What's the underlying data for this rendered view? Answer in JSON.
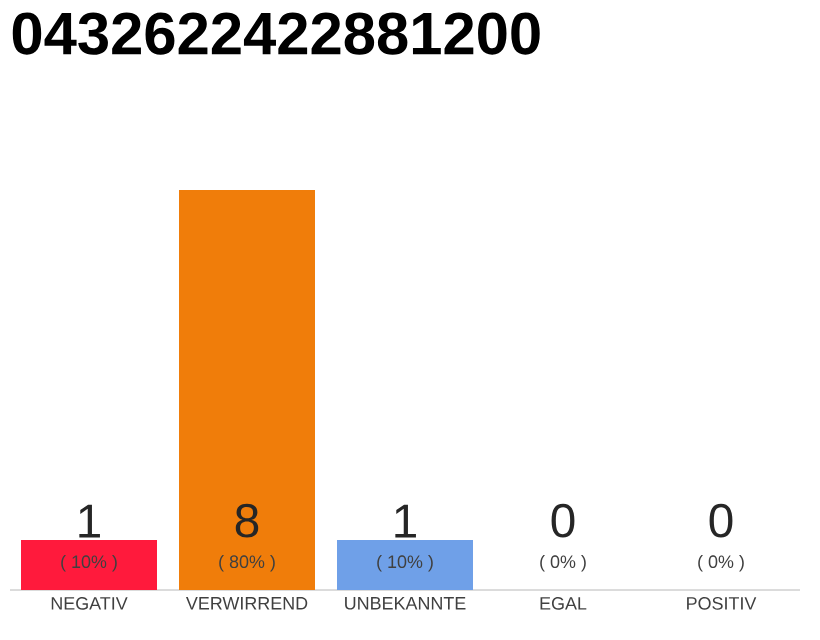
{
  "chart_data": {
    "type": "bar",
    "title": "0432622422881200",
    "categories": [
      "NEGATIV",
      "VERWIRREND",
      "UNBEKANNTE",
      "EGAL",
      "POSITIV"
    ],
    "values": [
      1,
      8,
      1,
      0,
      0
    ],
    "colors": [
      "#ff1a3c",
      "#f07d0a",
      "#6fa0e8",
      "#cccccc",
      "#cccccc"
    ],
    "value_labels": [
      "1",
      "8",
      "1",
      "0",
      "0"
    ],
    "annotations": [
      {
        "text": "( 10% )",
        "x": "NEGATIV",
        "y": 0
      },
      {
        "text": "( 80% )",
        "x": "VERWIRREND",
        "y": 0
      },
      {
        "text": "( 10% )",
        "x": "UNBEKANNTE",
        "y": 0
      },
      {
        "text": "( 0% )",
        "x": "EGAL",
        "y": 0
      },
      {
        "text": "( 0% )",
        "x": "POSITIV",
        "y": 0
      }
    ]
  }
}
